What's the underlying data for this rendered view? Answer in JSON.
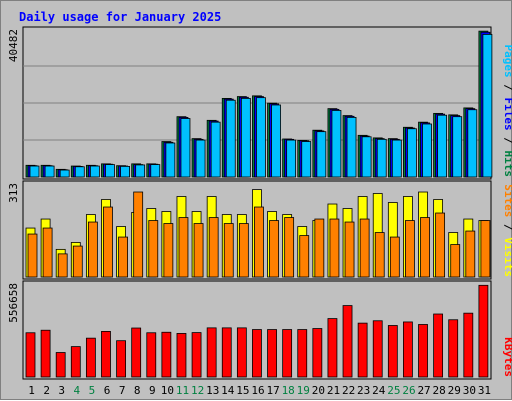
{
  "chart_data": {
    "type": "bar",
    "title": "Daily usage for January 2025",
    "categories": [
      "1",
      "2",
      "3",
      "4",
      "5",
      "6",
      "7",
      "8",
      "9",
      "10",
      "11",
      "12",
      "13",
      "14",
      "15",
      "16",
      "17",
      "18",
      "19",
      "20",
      "21",
      "22",
      "23",
      "24",
      "25",
      "26",
      "27",
      "28",
      "29",
      "30",
      "31"
    ],
    "weekend_days": [
      "4",
      "5",
      "11",
      "12",
      "18",
      "19",
      "25",
      "26"
    ],
    "panels": [
      {
        "id": "hits",
        "ymax_label": "40482",
        "ymax": 40482,
        "series": [
          {
            "name": "Hits",
            "color": "#008040",
            "values": [
              3200,
              3200,
              2100,
              3000,
              3200,
              3600,
              3100,
              3600,
              3600,
              9700,
              16500,
              10500,
              15500,
              21500,
              22000,
              22200,
              20200,
              10400,
              10000,
              12800,
              18700,
              16800,
              11400,
              10700,
              10500,
              13600,
              15000,
              17400,
              17000,
              18900,
              39900
            ]
          },
          {
            "name": "Files",
            "color": "#0000ff",
            "values": [
              3100,
              3100,
              2000,
              2900,
              3100,
              3500,
              3000,
              3400,
              3500,
              9500,
              16300,
              10300,
              15300,
              21300,
              21800,
              22000,
              20000,
              10300,
              9900,
              12600,
              18500,
              16600,
              11200,
              10500,
              10300,
              13400,
              14800,
              17200,
              16800,
              18700,
              39600
            ]
          },
          {
            "name": "Pages",
            "color": "#00c0ff",
            "values": [
              3000,
              3000,
              1900,
              2800,
              3000,
              3400,
              2900,
              3300,
              3400,
              9300,
              16000,
              10100,
              15000,
              21000,
              21500,
              21700,
              19700,
              10100,
              9700,
              12400,
              18200,
              16300,
              11000,
              10300,
              10100,
              13200,
              14500,
              16900,
              16500,
              18400,
              39000
            ]
          }
        ]
      },
      {
        "id": "visits",
        "ymax_label": "313",
        "ymax": 313,
        "series": [
          {
            "name": "Visits",
            "color": "#ffff00",
            "values": [
              163,
              193,
              92,
              115,
              208,
              258,
              168,
              215,
              228,
              218,
              268,
              218,
              268,
              208,
              208,
              291,
              218,
              208,
              168,
              188,
              243,
              228,
              268,
              278,
              248,
              268,
              283,
              258,
              148,
              193,
              188
            ]
          },
          {
            "name": "Sites",
            "color": "#ff8000",
            "values": [
              143,
              163,
              77,
              103,
              183,
              233,
              133,
              283,
              188,
              178,
              198,
              178,
              198,
              178,
              178,
              233,
              188,
              198,
              138,
              193,
              193,
              183,
              193,
              148,
              133,
              188,
              198,
              213,
              108,
              153,
              188
            ]
          }
        ]
      },
      {
        "id": "kbytes",
        "ymax_label": "556658",
        "ymax": 556658,
        "series": [
          {
            "name": "KBytes",
            "color": "#ff0000",
            "values": [
              262000,
              277000,
              145000,
              180000,
              230000,
              270000,
              215000,
              290000,
              262000,
              265000,
              258000,
              263000,
              291000,
              291000,
              291000,
              281000,
              281000,
              281000,
              281000,
              287000,
              346000,
              423000,
              319000,
              333000,
              305000,
              326000,
              311000,
              373000,
              339000,
              378000,
              543000
            ]
          }
        ]
      }
    ]
  }
}
